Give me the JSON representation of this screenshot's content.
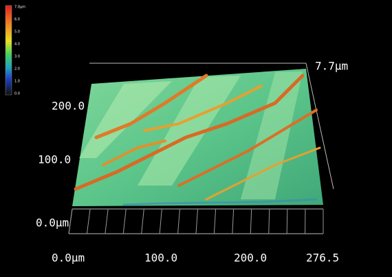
{
  "colorbar": {
    "labels": [
      "7.0μm",
      "6.0",
      "5.0",
      "4.0",
      "3.0",
      "2.0",
      "1.0",
      "0.0"
    ]
  },
  "axes": {
    "z_label": "7.7μm",
    "y_labels": [
      "200.0",
      "100.0",
      "0.0μm"
    ],
    "x_labels": [
      "0.0μm",
      "100.0",
      "200.0",
      "276.5"
    ]
  }
}
